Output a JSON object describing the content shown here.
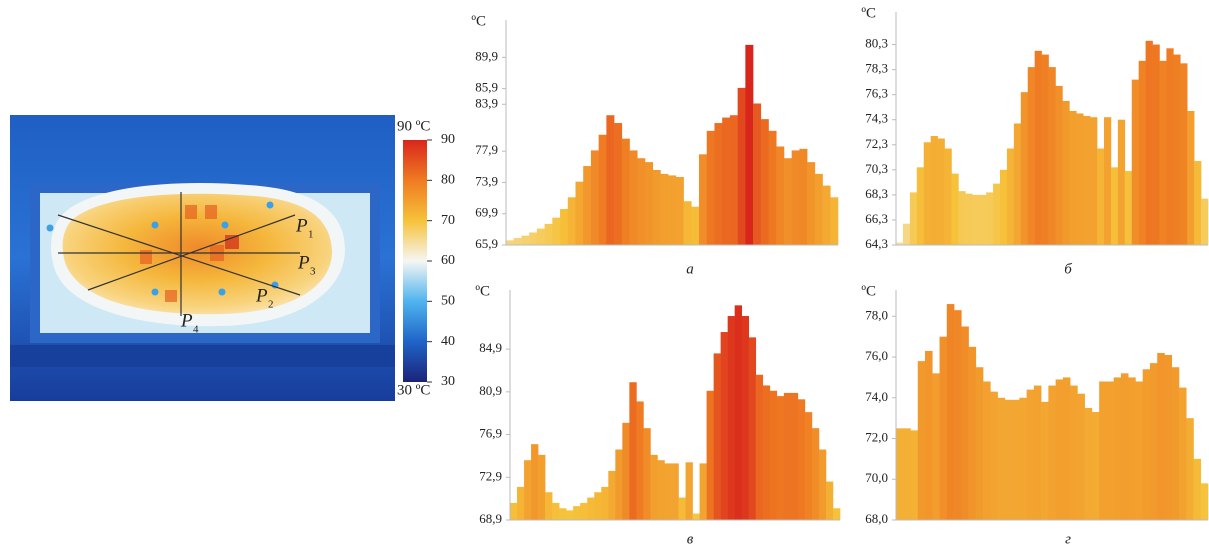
{
  "thermal_image": {
    "probe_lines": [
      {
        "letter": "P",
        "index": "1"
      },
      {
        "letter": "P",
        "index": "2"
      },
      {
        "letter": "P",
        "index": "3"
      },
      {
        "letter": "P",
        "index": "4"
      }
    ],
    "colorbar": {
      "ticks": [
        30,
        40,
        50,
        60,
        70,
        80,
        90
      ],
      "colors": [
        "#1b2378",
        "#1f64c8",
        "#4fb4ee",
        "#f5f6f4",
        "#f6c23a",
        "#ef7b22",
        "#d9261c"
      ],
      "max_label": "90 ºC",
      "min_label": "30 ºC"
    }
  },
  "chart_data": [
    {
      "type": "bar",
      "y_unit_label": "ºC",
      "caption": "а",
      "ylim": [
        65.9,
        93.4
      ],
      "yticks": [
        {
          "value": 65.9,
          "label": "65,9"
        },
        {
          "value": 69.9,
          "label": "69,9"
        },
        {
          "value": 73.9,
          "label": "73,9"
        },
        {
          "value": 77.9,
          "label": "77,9"
        },
        {
          "value": 83.9,
          "label": "83,9"
        },
        {
          "value": 85.9,
          "label": "85,9"
        },
        {
          "value": 89.9,
          "label": "89,9"
        }
      ],
      "values": [
        66.5,
        66.8,
        67.1,
        67.5,
        68,
        68.6,
        69.4,
        70.5,
        72,
        74,
        76,
        78,
        80,
        82.5,
        81.5,
        79.5,
        78,
        77,
        76.5,
        75.5,
        75,
        74.8,
        74.6,
        71.5,
        70.8,
        77.5,
        80.5,
        81.5,
        82.2,
        82.5,
        86,
        91.5,
        84,
        82,
        80.5,
        78.5,
        77,
        78,
        78.2,
        76.5,
        75,
        73.5,
        72
      ]
    },
    {
      "type": "bar",
      "y_unit_label": "ºC",
      "caption": "б",
      "ylim": [
        64.3,
        82.1
      ],
      "yticks": [
        {
          "value": 64.3,
          "label": "64,3"
        },
        {
          "value": 66.3,
          "label": "66,3"
        },
        {
          "value": 68.3,
          "label": "68,3"
        },
        {
          "value": 70.3,
          "label": "70,3"
        },
        {
          "value": 72.3,
          "label": "72,3"
        },
        {
          "value": 74.3,
          "label": "74,3"
        },
        {
          "value": 76.3,
          "label": "76,3"
        },
        {
          "value": 78.3,
          "label": "78,3"
        },
        {
          "value": 80.3,
          "label": "80,3"
        }
      ],
      "values": [
        64.5,
        66,
        68.5,
        70.5,
        72.5,
        73,
        72.8,
        72,
        70,
        68.6,
        68.4,
        68.3,
        68.3,
        68.5,
        69.2,
        70.3,
        72,
        74,
        76.5,
        78.5,
        79.8,
        79.5,
        78.5,
        77,
        75.8,
        75,
        74.8,
        74.6,
        74.5,
        72,
        74.5,
        70.5,
        74.3,
        70.2,
        77.5,
        79,
        80.6,
        80.3,
        79,
        80,
        79.5,
        78.8,
        75,
        71,
        68
      ]
    },
    {
      "type": "bar",
      "y_unit_label": "ºC",
      "caption": "в",
      "ylim": [
        68.9,
        89.5
      ],
      "yticks": [
        {
          "value": 68.9,
          "label": "68,9"
        },
        {
          "value": 72.9,
          "label": "72,9"
        },
        {
          "value": 76.9,
          "label": "76,9"
        },
        {
          "value": 80.9,
          "label": "80,9"
        },
        {
          "value": 84.9,
          "label": "84,9"
        }
      ],
      "values": [
        70.5,
        72,
        74.5,
        76,
        75,
        71.5,
        70.5,
        70,
        69.8,
        70.2,
        70.5,
        71,
        71.5,
        72,
        73.5,
        75.5,
        78,
        81.8,
        80,
        77.5,
        75,
        74.5,
        74.2,
        74.2,
        71,
        74.3,
        69.5,
        74.2,
        81,
        84.5,
        86.5,
        88,
        89,
        88,
        86,
        82.5,
        81.5,
        81,
        80.5,
        80.8,
        80.8,
        80.2,
        79,
        77.5,
        75.5,
        72.5,
        70
      ]
    },
    {
      "type": "bar",
      "y_unit_label": "ºC",
      "caption": "г",
      "ylim": [
        68,
        78.8
      ],
      "yticks": [
        {
          "value": 68,
          "label": "68,0"
        },
        {
          "value": 70,
          "label": "70,0"
        },
        {
          "value": 72,
          "label": "72,0"
        },
        {
          "value": 74,
          "label": "74,0"
        },
        {
          "value": 76,
          "label": "76,0"
        },
        {
          "value": 78,
          "label": "78,0"
        }
      ],
      "values": [
        72.5,
        72.5,
        72.4,
        75.8,
        76.3,
        75.2,
        77,
        78.6,
        78.3,
        77.5,
        76.5,
        75.5,
        74.8,
        74.3,
        74,
        73.9,
        73.9,
        74,
        74.4,
        74.6,
        73.8,
        74.6,
        74.9,
        75,
        74.6,
        74.2,
        73.5,
        73.3,
        74.8,
        74.8,
        75,
        75.2,
        75,
        74.8,
        75.4,
        75.7,
        76.2,
        76.1,
        75.5,
        74.5,
        73,
        71,
        69.8
      ]
    }
  ]
}
